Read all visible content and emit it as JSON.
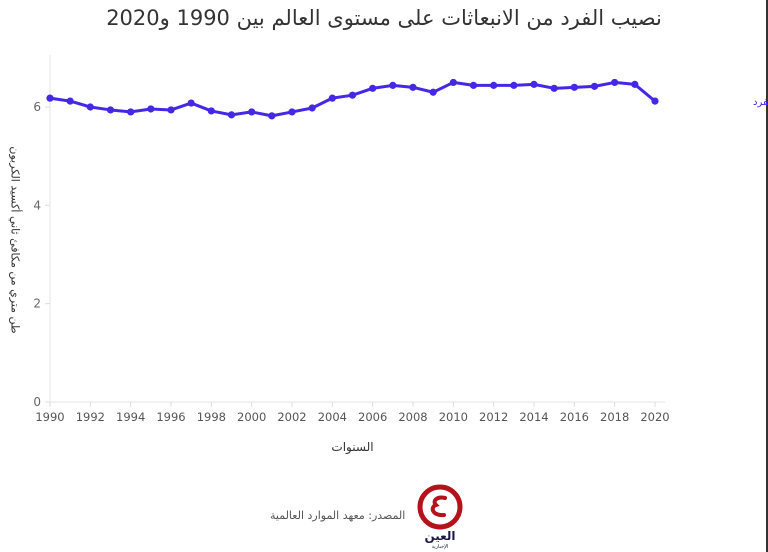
{
  "title": "نصيب الفرد من الانبعاثات على مستوى العالم بين 1990 و2020",
  "source": "المصدر: معهد الموارد العالمية",
  "logo": {
    "text": "العين",
    "subtext": "الإخبارية",
    "color": "#b5121b"
  },
  "colors": {
    "series": "#4527e6",
    "grid": "#eeeeee",
    "text": "#333333"
  },
  "chart_data": {
    "type": "line",
    "title": "نصيب الفرد من الانبعاثات على مستوى العالم بين 1990 و2020",
    "xlabel": "السنوات",
    "ylabel": "طن متري من مكافئ ثاني أكسيد الكربون",
    "x": [
      1990,
      1991,
      1992,
      1993,
      1994,
      1995,
      1996,
      1997,
      1998,
      1999,
      2000,
      2001,
      2002,
      2003,
      2004,
      2005,
      2006,
      2007,
      2008,
      2009,
      2010,
      2011,
      2012,
      2013,
      2014,
      2015,
      2016,
      2017,
      2018,
      2019,
      2020
    ],
    "series": [
      {
        "name": "حجم الانبعاثات للفرد",
        "values": [
          6.18,
          6.12,
          6.0,
          5.94,
          5.9,
          5.96,
          5.94,
          6.08,
          5.92,
          5.84,
          5.9,
          5.82,
          5.9,
          5.98,
          6.18,
          6.24,
          6.38,
          6.44,
          6.4,
          6.3,
          6.5,
          6.44,
          6.44,
          6.44,
          6.46,
          6.38,
          6.4,
          6.42,
          6.5,
          6.46,
          6.12
        ]
      }
    ],
    "x_ticks": [
      "1990",
      "1992",
      "1994",
      "1996",
      "1998",
      "2000",
      "2002",
      "2004",
      "2006",
      "2008",
      "2010",
      "2012",
      "2014",
      "2016",
      "2018",
      "2020"
    ],
    "y_ticks": [
      "0",
      "2",
      "4",
      "6"
    ],
    "xlim": [
      1990,
      2020
    ],
    "ylim": [
      0,
      7
    ],
    "grid": false,
    "legend_position": "end-of-line label"
  }
}
